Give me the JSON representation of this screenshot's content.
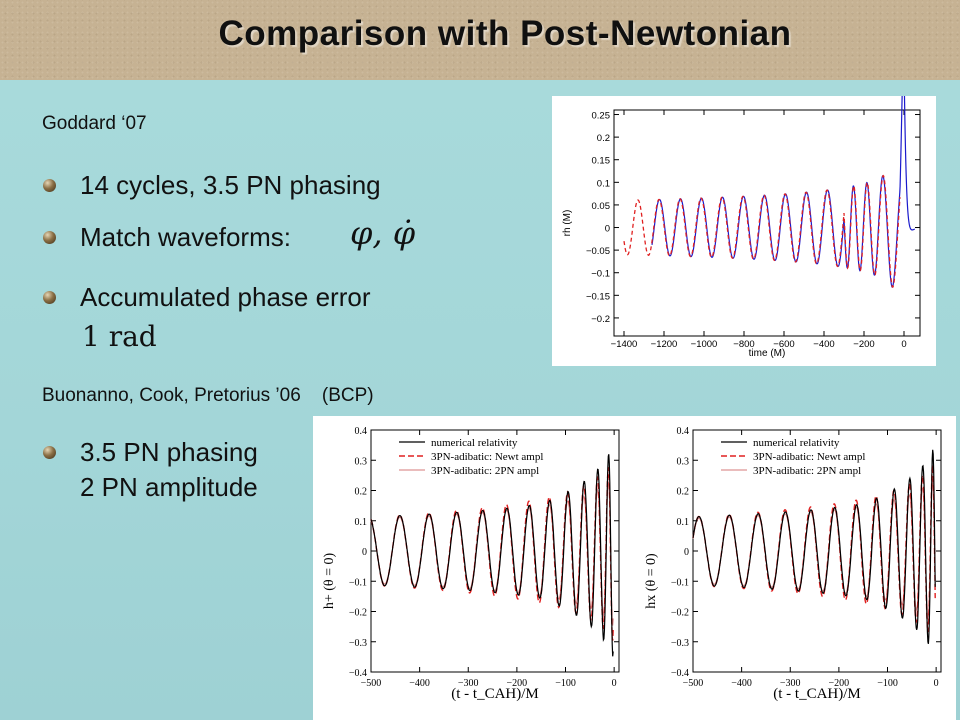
{
  "slide": {
    "title": "Comparison with Post-Newtonian",
    "section1": "Goddard ‘07",
    "bullet1": "14 cycles,  3.5 PN phasing",
    "bullet2": "Match waveforms:",
    "bullet2_math": "φ, φ̇",
    "bullet3": "Accumulated phase error",
    "bullet3_math": "1 rad",
    "section2": "Buonanno, Cook, Pretorius ’06    (BCP)",
    "bullet4_line1": "3.5 PN phasing",
    "bullet4_line2": "2 PN amplitude"
  },
  "colors": {
    "header": "#c6b293",
    "background": "#a3d6d8",
    "numerical": "#1a1acc",
    "pn": "#e02020"
  },
  "chart_data": [
    {
      "type": "line",
      "xlabel": "time (M)",
      "ylabel": "rh (M)",
      "xlim": [
        -1450,
        80
      ],
      "ylim": [
        -0.24,
        0.26
      ],
      "xticks": [
        "-1400",
        "-1200",
        "-1000",
        "-800",
        "-600",
        "-400",
        "-200",
        "0"
      ],
      "yticks": [
        "0.25",
        "0.2",
        "0.15",
        "0.1",
        "0.05",
        "0",
        "-0.05",
        "-0.1",
        "-0.15",
        "-0.2"
      ],
      "series": [
        {
          "name": "",
          "style": "solid blue (numerical)"
        },
        {
          "name": "",
          "style": "dashed red (post-Newtonian)"
        }
      ]
    },
    {
      "type": "line",
      "xlabel": "(t - t_CAH)/M",
      "ylabel": "h+ (θ = 0)",
      "xlim": [
        -500,
        10
      ],
      "ylim": [
        -0.4,
        0.4
      ],
      "xticks": [
        "-500",
        "-400",
        "-300",
        "-200",
        "-100",
        "0"
      ],
      "yticks": [
        "0.4",
        "0.3",
        "0.2",
        "0.1",
        "0",
        "-0.1",
        "-0.2",
        "-0.3",
        "-0.4"
      ],
      "legend": "top-right",
      "series": [
        {
          "name": "numerical relativity"
        },
        {
          "name": "3PN-adibatic: Newt ampl"
        },
        {
          "name": "3PN-adibatic: 2PN ampl"
        }
      ]
    },
    {
      "type": "line",
      "xlabel": "(t - t_CAH)/M",
      "ylabel": "hx (θ = 0)",
      "xlim": [
        -500,
        10
      ],
      "ylim": [
        -0.4,
        0.4
      ],
      "xticks": [
        "-500",
        "-400",
        "-300",
        "-200",
        "-100",
        "0"
      ],
      "yticks": [
        "0.4",
        "0.3",
        "0.2",
        "0.1",
        "0",
        "-0.1",
        "-0.2",
        "-0.3",
        "-0.4"
      ],
      "legend": "top-right",
      "series": [
        {
          "name": "numerical relativity"
        },
        {
          "name": "3PN-adibatic: Newt ampl"
        },
        {
          "name": "3PN-adibatic: 2PN ampl"
        }
      ]
    }
  ]
}
